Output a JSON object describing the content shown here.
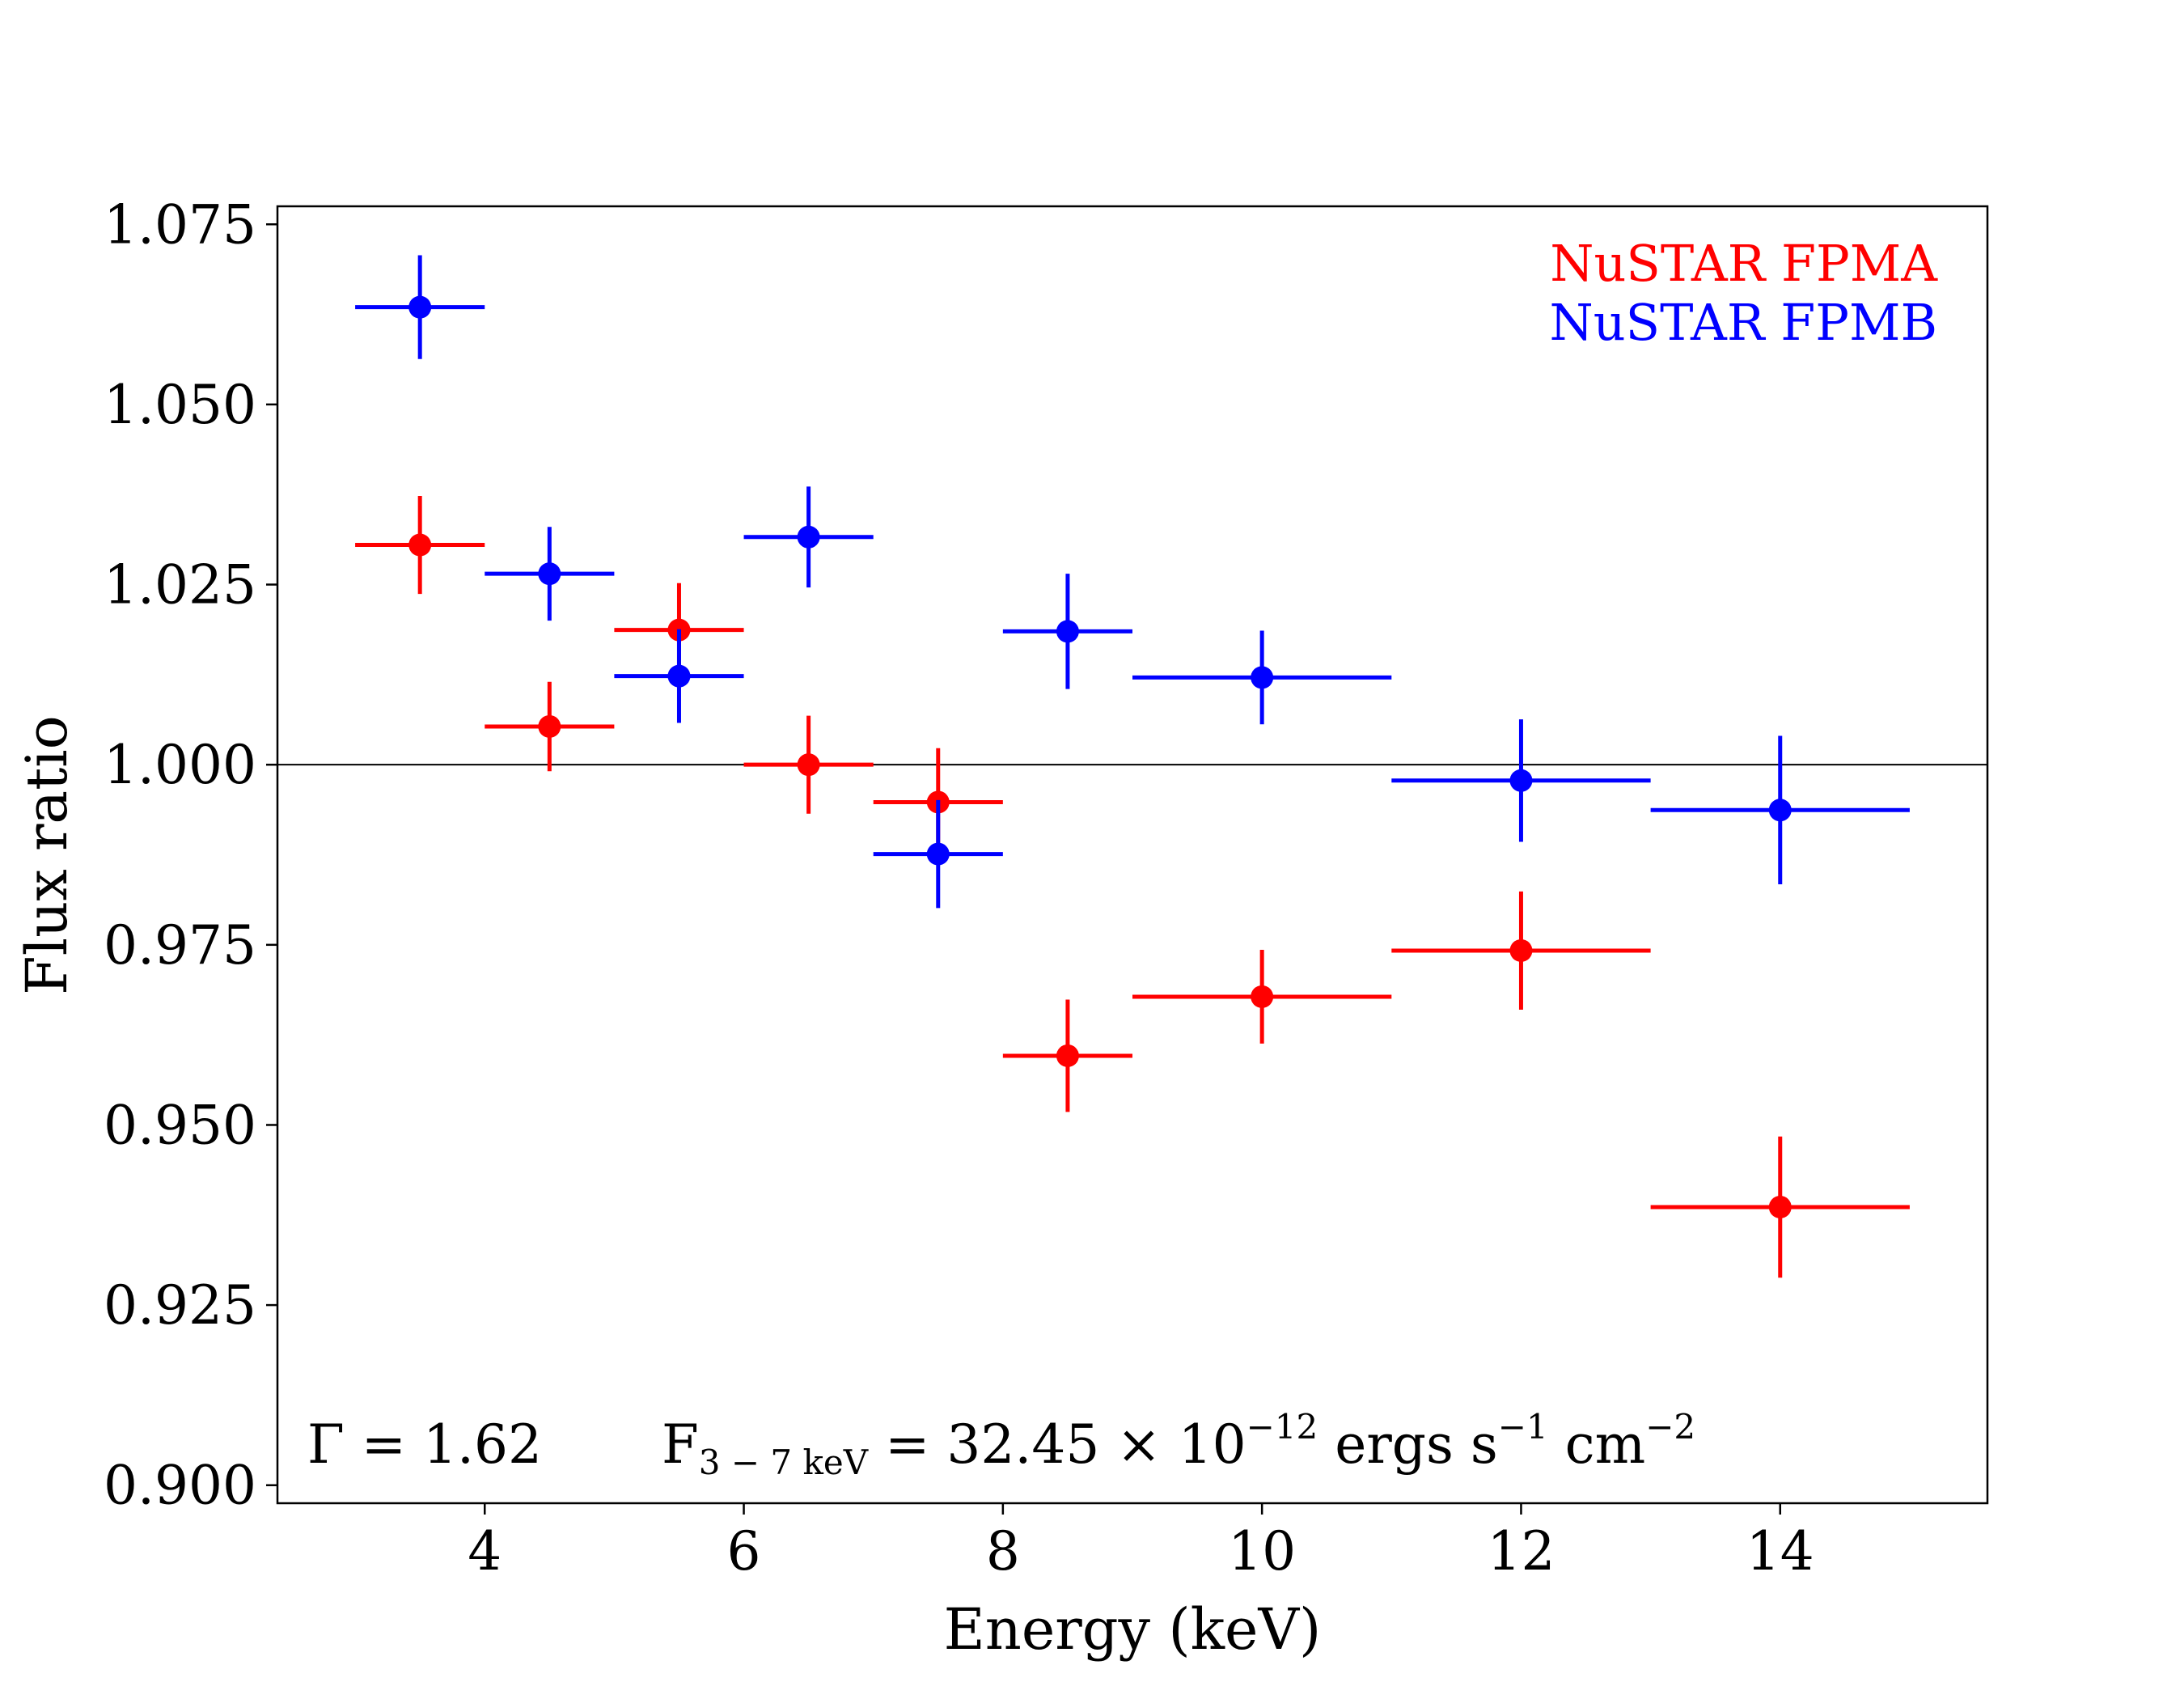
{
  "chart_data": {
    "type": "scatter",
    "xlabel": "Energy (keV)",
    "ylabel": "Flux ratio",
    "xlim": [
      2.4,
      15.6
    ],
    "ylim": [
      0.8975,
      1.0775
    ],
    "xticks": [
      4,
      6,
      8,
      10,
      12,
      14
    ],
    "xtick_labels": [
      "4",
      "6",
      "8",
      "10",
      "12",
      "14"
    ],
    "yticks": [
      0.9,
      0.925,
      0.95,
      0.975,
      1.0,
      1.025,
      1.05,
      1.075
    ],
    "ytick_labels": [
      "0.900",
      "0.925",
      "0.950",
      "0.975",
      "1.000",
      "1.025",
      "1.050",
      "1.075"
    ],
    "reference_line": 1.0,
    "grid": false,
    "legend_position": "top-right",
    "series": [
      {
        "name": "NuSTAR FPMA",
        "color": "#ff0000",
        "points": [
          {
            "x": 3.5,
            "xerr": 0.5,
            "y": 1.0305,
            "yerr": 0.0068
          },
          {
            "x": 4.5,
            "xerr": 0.5,
            "y": 1.0053,
            "yerr": 0.0062
          },
          {
            "x": 5.5,
            "xerr": 0.5,
            "y": 1.0187,
            "yerr": 0.0065
          },
          {
            "x": 6.5,
            "xerr": 0.5,
            "y": 1.0,
            "yerr": 0.0068
          },
          {
            "x": 7.5,
            "xerr": 0.5,
            "y": 0.9948,
            "yerr": 0.0075
          },
          {
            "x": 8.5,
            "xerr": 0.5,
            "y": 0.9596,
            "yerr": 0.0078
          },
          {
            "x": 10.0,
            "xerr": 1.0,
            "y": 0.9678,
            "yerr": 0.0065
          },
          {
            "x": 12.0,
            "xerr": 1.0,
            "y": 0.9742,
            "yerr": 0.0082
          },
          {
            "x": 14.0,
            "xerr": 1.0,
            "y": 0.9386,
            "yerr": 0.0098
          }
        ]
      },
      {
        "name": "NuSTAR FPMB",
        "color": "#0000ff",
        "points": [
          {
            "x": 3.5,
            "xerr": 0.5,
            "y": 1.0635,
            "yerr": 0.0072
          },
          {
            "x": 4.5,
            "xerr": 0.5,
            "y": 1.0265,
            "yerr": 0.0065
          },
          {
            "x": 5.5,
            "xerr": 0.5,
            "y": 1.0123,
            "yerr": 0.0065
          },
          {
            "x": 6.5,
            "xerr": 0.5,
            "y": 1.0316,
            "yerr": 0.007
          },
          {
            "x": 7.5,
            "xerr": 0.5,
            "y": 0.9876,
            "yerr": 0.0075
          },
          {
            "x": 8.5,
            "xerr": 0.5,
            "y": 1.0185,
            "yerr": 0.008
          },
          {
            "x": 10.0,
            "xerr": 1.0,
            "y": 1.0121,
            "yerr": 0.0065
          },
          {
            "x": 12.0,
            "xerr": 1.0,
            "y": 0.9978,
            "yerr": 0.0085
          },
          {
            "x": 14.0,
            "xerr": 1.0,
            "y": 0.9937,
            "yerr": 0.0103
          }
        ]
      }
    ],
    "annotations": {
      "gamma": "Γ = 1.62",
      "flux_prefix": "F",
      "flux_subscript": "3 − 7 keV",
      "flux_value": " = 32.45 × 10",
      "flux_exp": "−12",
      "flux_units_a": " ergs s",
      "flux_units_a_exp": "−1",
      "flux_units_b": " cm",
      "flux_units_b_exp": "−2"
    }
  }
}
